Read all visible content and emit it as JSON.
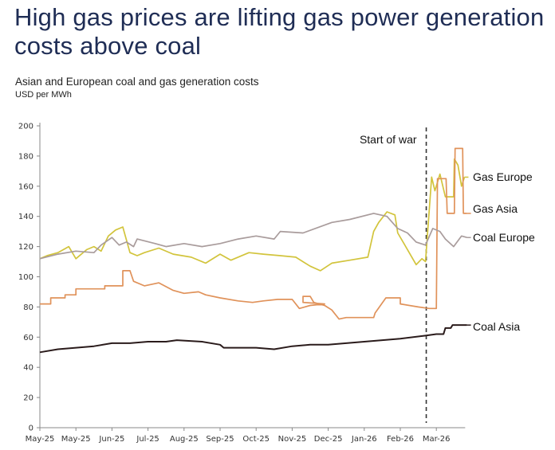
{
  "title": "High gas prices are lifting gas power generation costs above coal",
  "subtitle": "Asian and European coal and gas generation costs",
  "unit": "USD per MWh",
  "chart_data": {
    "type": "line",
    "title": "Asian and European coal and gas generation costs",
    "ylabel": "USD per MWh",
    "xlabel": "",
    "ylim": [
      0,
      200
    ],
    "yticks": [
      0,
      20,
      40,
      60,
      80,
      100,
      120,
      140,
      160,
      180,
      200
    ],
    "categories": [
      "May-25",
      "May-25",
      "Jun-25",
      "Jul-25",
      "Aug-25",
      "Sep-25",
      "Oct-25",
      "Nov-25",
      "Dec-25",
      "Jan-26",
      "Feb-26",
      "Mar-26"
    ],
    "x_note_units": "x values are positions measured in axis tick intervals from the first tick",
    "grid": false,
    "legend": "direct labels at line ends (right)",
    "annotation": {
      "label": "Start of war",
      "x": 10.72
    },
    "series": [
      {
        "name": "Gas Europe",
        "color": "#d2c43c",
        "points": [
          [
            0,
            112
          ],
          [
            0.2,
            114
          ],
          [
            0.5,
            116
          ],
          [
            0.8,
            120
          ],
          [
            1.0,
            112
          ],
          [
            1.3,
            118
          ],
          [
            1.5,
            120
          ],
          [
            1.7,
            117
          ],
          [
            1.9,
            127
          ],
          [
            2.1,
            131
          ],
          [
            2.3,
            133
          ],
          [
            2.5,
            116
          ],
          [
            2.7,
            114
          ],
          [
            2.9,
            116
          ],
          [
            3.3,
            119
          ],
          [
            3.7,
            115
          ],
          [
            4.2,
            113
          ],
          [
            4.6,
            109
          ],
          [
            5.0,
            115
          ],
          [
            5.3,
            111
          ],
          [
            5.8,
            116
          ],
          [
            6.2,
            115
          ],
          [
            6.67,
            114
          ],
          [
            7.1,
            113
          ],
          [
            7.5,
            107
          ],
          [
            7.78,
            104
          ],
          [
            8.1,
            109
          ],
          [
            8.6,
            111
          ],
          [
            9.1,
            113
          ],
          [
            9.26,
            130
          ],
          [
            9.4,
            136
          ],
          [
            9.63,
            143
          ],
          [
            9.85,
            141
          ],
          [
            9.93,
            129
          ],
          [
            10.2,
            118
          ],
          [
            10.44,
            108
          ],
          [
            10.6,
            112
          ],
          [
            10.7,
            110
          ],
          [
            10.87,
            166
          ],
          [
            10.96,
            157
          ],
          [
            11.1,
            168
          ],
          [
            11.25,
            153
          ],
          [
            11.48,
            153
          ],
          [
            11.5,
            178
          ],
          [
            11.6,
            174
          ],
          [
            11.7,
            160
          ],
          [
            11.78,
            166
          ]
        ]
      },
      {
        "name": "Gas Asia",
        "color": "#e0925a",
        "points": [
          [
            0,
            82
          ],
          [
            0.3,
            82
          ],
          [
            0.3,
            86
          ],
          [
            0.7,
            86
          ],
          [
            0.7,
            88
          ],
          [
            1.0,
            88
          ],
          [
            1.0,
            92
          ],
          [
            1.8,
            92
          ],
          [
            1.8,
            94
          ],
          [
            2.3,
            94
          ],
          [
            2.3,
            104
          ],
          [
            2.5,
            104
          ],
          [
            2.6,
            97
          ],
          [
            2.9,
            94
          ],
          [
            3.3,
            96
          ],
          [
            3.7,
            91
          ],
          [
            4.0,
            89
          ],
          [
            4.4,
            90
          ],
          [
            4.6,
            88
          ],
          [
            5.0,
            86
          ],
          [
            5.5,
            84
          ],
          [
            5.9,
            83
          ],
          [
            6.2,
            84
          ],
          [
            6.6,
            85
          ],
          [
            7.0,
            85
          ],
          [
            7.2,
            79
          ],
          [
            7.5,
            81
          ],
          [
            7.9,
            82
          ],
          [
            7.3,
            83
          ],
          [
            7.3,
            87
          ],
          [
            7.5,
            87
          ],
          [
            7.6,
            83
          ],
          [
            7.9,
            81
          ],
          [
            8.1,
            78
          ],
          [
            8.3,
            72
          ],
          [
            8.5,
            73
          ],
          [
            9.26,
            73
          ],
          [
            9.3,
            76
          ],
          [
            9.6,
            86
          ],
          [
            10.0,
            86
          ],
          [
            10.0,
            82
          ],
          [
            10.5,
            80
          ],
          [
            10.8,
            79
          ],
          [
            11.0,
            79
          ],
          [
            11.03,
            165
          ],
          [
            11.27,
            165
          ],
          [
            11.3,
            142
          ],
          [
            11.5,
            142
          ],
          [
            11.52,
            185
          ],
          [
            11.73,
            185
          ],
          [
            11.75,
            142
          ],
          [
            11.85,
            142
          ]
        ]
      },
      {
        "name": "Coal Europe",
        "color": "#a99c9c",
        "points": [
          [
            0,
            112
          ],
          [
            0.5,
            115
          ],
          [
            1.0,
            117
          ],
          [
            1.5,
            116
          ],
          [
            1.7,
            121
          ],
          [
            2.0,
            126
          ],
          [
            2.2,
            121
          ],
          [
            2.4,
            123
          ],
          [
            2.6,
            120
          ],
          [
            2.7,
            125
          ],
          [
            3.2,
            122
          ],
          [
            3.5,
            120
          ],
          [
            4.0,
            122
          ],
          [
            4.5,
            120
          ],
          [
            5.0,
            122
          ],
          [
            5.5,
            125
          ],
          [
            6.0,
            127
          ],
          [
            6.5,
            125
          ],
          [
            6.67,
            130
          ],
          [
            7.3,
            129
          ],
          [
            8.1,
            136
          ],
          [
            8.6,
            138
          ],
          [
            9.26,
            142
          ],
          [
            9.63,
            140
          ],
          [
            9.93,
            132
          ],
          [
            10.2,
            129
          ],
          [
            10.44,
            123
          ],
          [
            10.7,
            121
          ],
          [
            10.9,
            132
          ],
          [
            11.1,
            130
          ],
          [
            11.25,
            125
          ],
          [
            11.48,
            120
          ],
          [
            11.7,
            127
          ],
          [
            11.85,
            126
          ]
        ]
      },
      {
        "name": "Coal Asia",
        "color": "#2a1b1b",
        "points": [
          [
            0,
            50
          ],
          [
            0.5,
            52
          ],
          [
            1.0,
            53
          ],
          [
            1.5,
            54
          ],
          [
            2.0,
            56
          ],
          [
            2.5,
            56
          ],
          [
            3.0,
            57
          ],
          [
            3.5,
            57
          ],
          [
            3.8,
            58
          ],
          [
            4.5,
            57
          ],
          [
            5.0,
            55
          ],
          [
            5.1,
            53
          ],
          [
            6.0,
            53
          ],
          [
            6.5,
            52
          ],
          [
            7.0,
            54
          ],
          [
            7.5,
            55
          ],
          [
            8.0,
            55
          ],
          [
            8.5,
            56
          ],
          [
            9.0,
            57
          ],
          [
            9.5,
            58
          ],
          [
            10.0,
            59
          ],
          [
            10.7,
            61
          ],
          [
            11.0,
            62
          ],
          [
            11.2,
            62
          ],
          [
            11.25,
            66
          ],
          [
            11.4,
            66
          ],
          [
            11.45,
            68
          ],
          [
            11.85,
            68
          ]
        ]
      }
    ]
  }
}
